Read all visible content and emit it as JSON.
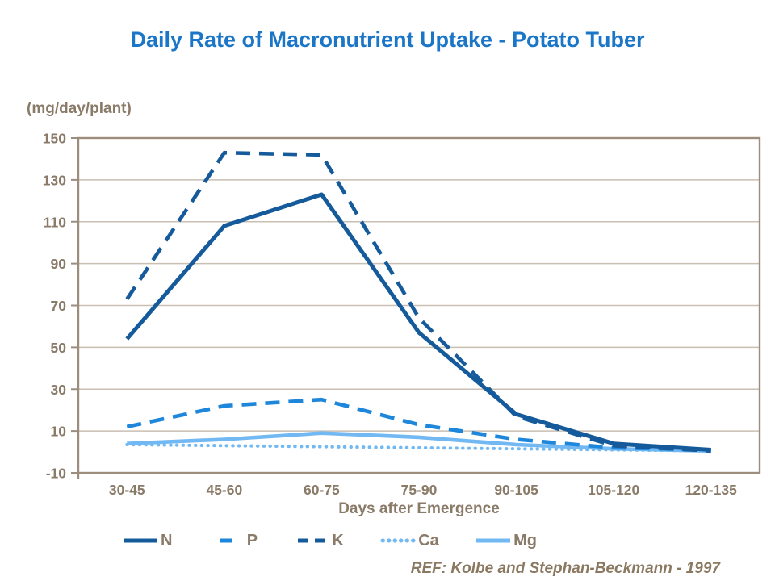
{
  "page": {
    "footer_ref": "REF: Kolbe and Stephan-Beckmann - 1997"
  },
  "colors": {
    "title": "#1b76c8",
    "axis_text": "#8a7a68",
    "gridline": "#c9bfb2",
    "frame": "#9c8d7d",
    "navy": "#155a9b",
    "medium_blue": "#1e86db",
    "light_blue": "#72b8f2",
    "ref_text": "#8a7860"
  },
  "chart_data": {
    "type": "line",
    "title": "Daily Rate of Macronutrient Uptake - Potato Tuber",
    "y_unit_label": "(mg/day/plant)",
    "xlabel": "Days after Emergence",
    "categories": [
      "30-45",
      "45-60",
      "60-75",
      "75-90",
      "90-105",
      "105-120",
      "120-135"
    ],
    "ylim": [
      -10,
      150
    ],
    "yticks": [
      150,
      130,
      110,
      90,
      70,
      50,
      30,
      10,
      -10
    ],
    "grid": "horizontal",
    "legend_position": "bottom",
    "series": [
      {
        "name": "Mg",
        "style": "solid",
        "legend_sample": "line",
        "color": "#72b8f2",
        "values": [
          4,
          6,
          9,
          7,
          3.5,
          1.5,
          0.5
        ]
      },
      {
        "name": "Ca",
        "style": "dotted",
        "legend_sample": "dots",
        "color": "#72b8f2",
        "values": [
          3.5,
          3,
          2.5,
          2,
          1.5,
          1,
          0.5
        ]
      },
      {
        "name": "P",
        "style": "dashed",
        "legend_sample": "single-dash",
        "color": "#1e86db",
        "values": [
          12,
          22,
          25,
          13,
          6,
          2,
          1
        ]
      },
      {
        "name": "N",
        "style": "solid",
        "legend_sample": "line",
        "color": "#155a9b",
        "values": [
          54,
          108,
          123,
          57,
          18,
          4,
          1
        ]
      },
      {
        "name": "K",
        "style": "dashed",
        "legend_sample": "double-dash",
        "color": "#155a9b",
        "values": [
          73,
          143,
          142,
          64,
          17,
          3,
          0.5
        ]
      }
    ],
    "legend_order": [
      "N",
      "P",
      "K",
      "Ca",
      "Mg"
    ]
  }
}
